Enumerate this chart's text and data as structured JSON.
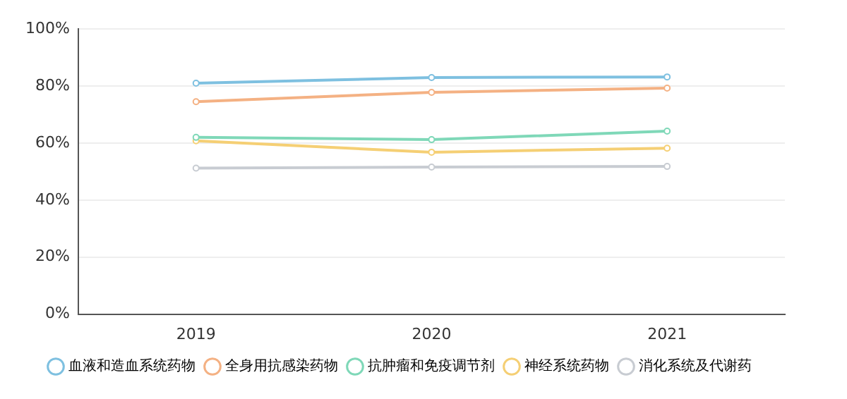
{
  "chart_data": {
    "type": "line",
    "categories": [
      "2019",
      "2020",
      "2021"
    ],
    "series": [
      {
        "name": "血液和造血系统药物",
        "color": "#7ec0e0",
        "values": [
          81,
          83,
          83.2
        ]
      },
      {
        "name": "全身用抗感染药物",
        "color": "#f4b183",
        "values": [
          74.5,
          77.8,
          79.3
        ]
      },
      {
        "name": "抗肿瘤和免疫调节剂",
        "color": "#7fd8b8",
        "values": [
          62,
          61.2,
          64.2
        ]
      },
      {
        "name": "神经系统药物",
        "color": "#f5cf74",
        "values": [
          60.8,
          56.8,
          58.2
        ]
      },
      {
        "name": "消化系统及代谢药",
        "color": "#c8ccd2",
        "values": [
          51.2,
          51.6,
          51.8
        ]
      }
    ],
    "ylim": [
      0,
      100
    ],
    "yticks": [
      {
        "value": 0,
        "label": "0%"
      },
      {
        "value": 20,
        "label": "20%"
      },
      {
        "value": 40,
        "label": "40%"
      },
      {
        "value": 60,
        "label": "60%"
      },
      {
        "value": 80,
        "label": "80%"
      },
      {
        "value": 100,
        "label": "100%"
      }
    ],
    "grid": "y",
    "legend": "bottom",
    "marker": "circle",
    "line_style": "solid"
  }
}
